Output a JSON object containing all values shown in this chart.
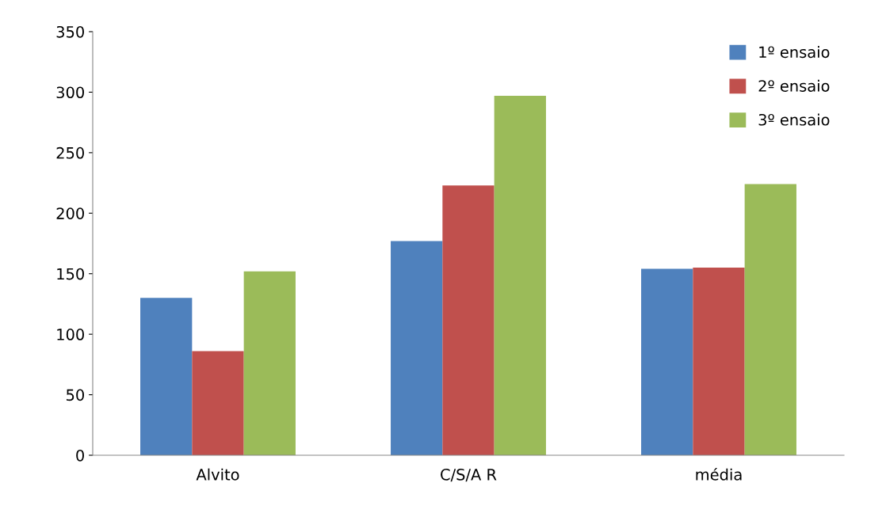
{
  "chart_data": {
    "type": "bar",
    "categories": [
      "Alvito",
      "C/S/A R",
      "média"
    ],
    "series": [
      {
        "name": "1º ensaio",
        "color": "#4f81bd",
        "values": [
          130,
          177,
          154
        ]
      },
      {
        "name": "2º ensaio",
        "color": "#c0504d",
        "values": [
          86,
          223,
          155
        ]
      },
      {
        "name": "3º ensaio",
        "color": "#9bbb59",
        "values": [
          152,
          297,
          224
        ]
      }
    ],
    "ylim": [
      0,
      350
    ],
    "yticks": [
      0,
      50,
      100,
      150,
      200,
      250,
      300,
      350
    ],
    "grid": false,
    "legend": "top right"
  }
}
